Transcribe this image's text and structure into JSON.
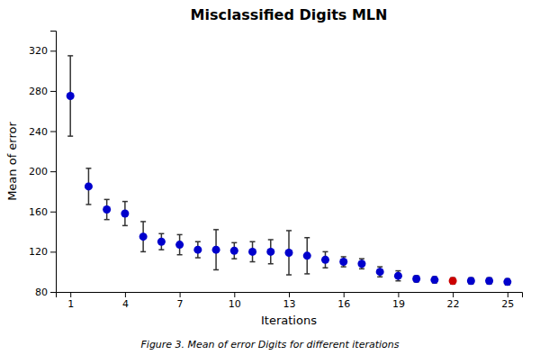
{
  "chart_data": {
    "type": "scatter",
    "title": "Misclassified Digits MLN",
    "xlabel": "Iterations",
    "ylabel": "Mean of error",
    "caption": "Figure 3. Mean of error Digits for different iterations",
    "x": [
      1,
      2,
      3,
      4,
      5,
      6,
      7,
      8,
      9,
      10,
      11,
      12,
      13,
      14,
      15,
      16,
      17,
      18,
      19,
      20,
      21,
      22,
      23,
      24,
      25
    ],
    "values": [
      275,
      185,
      162,
      158,
      135,
      130,
      127,
      122,
      122,
      121,
      120,
      120,
      119,
      116,
      112,
      110,
      108,
      100,
      96,
      93,
      92,
      91,
      91,
      91,
      90
    ],
    "errors": [
      40,
      18,
      10,
      12,
      15,
      8,
      10,
      8,
      20,
      8,
      10,
      12,
      22,
      18,
      8,
      5,
      5,
      5,
      5,
      3,
      3,
      3,
      3,
      3,
      3
    ],
    "colors": [
      "#0000cc",
      "#0000cc",
      "#0000cc",
      "#0000cc",
      "#0000cc",
      "#0000cc",
      "#0000cc",
      "#0000cc",
      "#0000cc",
      "#0000cc",
      "#0000cc",
      "#0000cc",
      "#0000cc",
      "#0000cc",
      "#0000cc",
      "#0000cc",
      "#0000cc",
      "#0000cc",
      "#0000cc",
      "#0000cc",
      "#0000cc",
      "#cc0000",
      "#0000cc",
      "#0000cc",
      "#0000cc"
    ],
    "xlim": [
      0.2,
      25.8
    ],
    "ylim": [
      80,
      340
    ],
    "xticks": [
      1,
      4,
      7,
      10,
      13,
      16,
      19,
      22,
      25
    ],
    "yticks": [
      80,
      120,
      160,
      200,
      240,
      280,
      320
    ],
    "marker": "circle",
    "grid": false
  }
}
